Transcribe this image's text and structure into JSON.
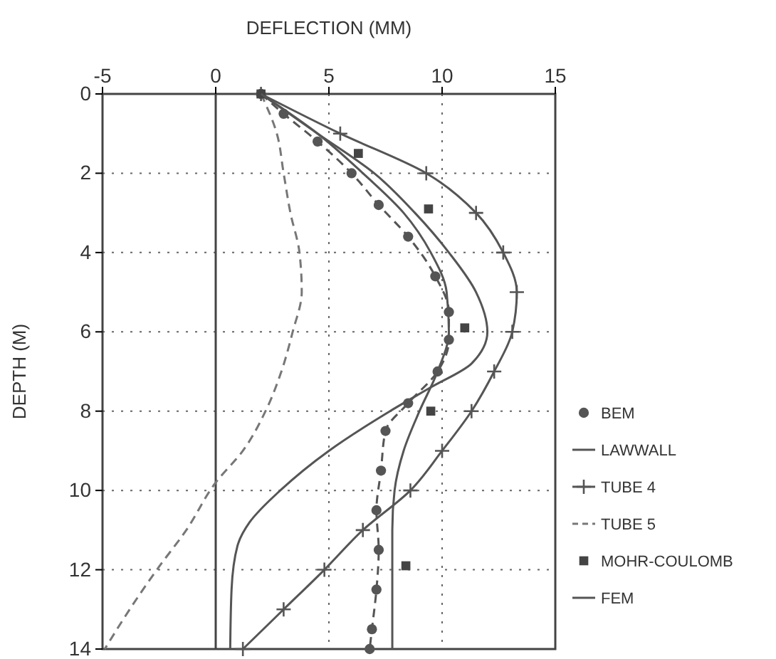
{
  "chart_data": {
    "type": "line",
    "xlabel": "DEFLECTION (MM)",
    "ylabel": "DEPTH (M)",
    "xlim": [
      -5,
      15
    ],
    "xticks": [
      -5,
      0,
      5,
      10,
      15
    ],
    "ylim": [
      14,
      0
    ],
    "yticks": [
      0,
      2,
      4,
      6,
      8,
      10,
      12,
      14
    ],
    "grid": true,
    "legend": "right",
    "ref_lines": [
      {
        "axis": "x",
        "value": 0,
        "line_style": "solid"
      }
    ],
    "series": [
      {
        "name": "BEM",
        "color": "#555555",
        "marker": "circle",
        "line_style": "dashed",
        "x": [
          2,
          3,
          4.5,
          6,
          7.2,
          8.5,
          9.7,
          10.3,
          10.3,
          9.8,
          8.5,
          7.5,
          7.3,
          7.1,
          7.2,
          7.1,
          6.9,
          6.8
        ],
        "values": [
          0,
          0.5,
          1.2,
          2,
          2.8,
          3.6,
          4.6,
          5.5,
          6.2,
          7,
          7.8,
          8.5,
          9.5,
          10.5,
          11.5,
          12.5,
          13.5,
          14
        ]
      },
      {
        "name": "LAWWALL",
        "color": "#555555",
        "marker": "none",
        "line_style": "solid",
        "x": [
          2,
          4.5,
          7,
          8.8,
          10.3,
          11.5,
          12,
          11.3,
          9.5,
          7.7,
          5,
          2.85,
          1.5,
          0.96,
          0.7,
          0.64
        ],
        "values": [
          0,
          1,
          2,
          3,
          4,
          5,
          6,
          6.8,
          7.4,
          8,
          9,
          10,
          10.8,
          11.4,
          12.5,
          14
        ]
      },
      {
        "name": "TUBE 4",
        "color": "#555555",
        "marker": "cross",
        "line_style": "solid",
        "x": [
          2,
          5.5,
          9.3,
          11.5,
          12.7,
          13.3,
          13.1,
          12.3,
          11.3,
          10,
          8.6,
          6.5,
          4.8,
          3,
          1.2
        ],
        "values": [
          0,
          1,
          2,
          3,
          4,
          5,
          6,
          7,
          8,
          9,
          10,
          11,
          12,
          13,
          14
        ]
      },
      {
        "name": "TUBE 5",
        "color": "#777777",
        "marker": "none",
        "line_style": "dashed",
        "x": [
          2,
          2.7,
          3,
          3.3,
          3.7,
          3.8,
          3.4,
          2.9,
          2.2,
          1.2,
          0,
          -1.3,
          -2.6,
          -3.8,
          -4.9
        ],
        "values": [
          0,
          1,
          2,
          3,
          4,
          5,
          6,
          7,
          8,
          9,
          9.8,
          11,
          12,
          13,
          14
        ]
      },
      {
        "name": "MOHR-COULOMB",
        "type": "scatter",
        "color": "#444444",
        "marker": "square",
        "x": [
          2,
          6.3,
          9.4,
          11,
          9.5,
          8.4
        ],
        "values": [
          0,
          1.5,
          2.9,
          5.9,
          8,
          11.9
        ]
      },
      {
        "name": "FEM",
        "color": "#555555",
        "marker": "none",
        "line_style": "solid",
        "x": [
          2,
          4.5,
          6.5,
          8.3,
          9.5,
          10.2,
          10.3,
          9.8,
          9,
          8.3,
          7.9,
          7.8,
          7.8
        ],
        "values": [
          0,
          1,
          2,
          3,
          4,
          5,
          6,
          7,
          8,
          9,
          10,
          11,
          14
        ]
      }
    ]
  }
}
